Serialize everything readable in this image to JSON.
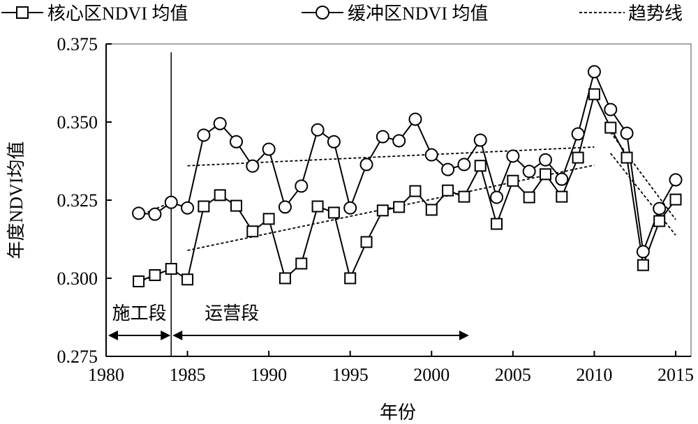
{
  "chart_data": {
    "type": "line",
    "title": "",
    "xlabel": "年份",
    "ylabel": "年度NDVI均值",
    "xlim": [
      1980,
      2016
    ],
    "ylim": [
      0.275,
      0.375
    ],
    "x_ticks": [
      "1980",
      "1985",
      "1990",
      "1995",
      "2000",
      "2005",
      "2010",
      "2015"
    ],
    "y_ticks": [
      "0.275",
      "0.300",
      "0.325",
      "0.350",
      "0.375"
    ],
    "grid": false,
    "legend_position": "top",
    "x": [
      1982,
      1983,
      1984,
      1985,
      1986,
      1987,
      1988,
      1989,
      1990,
      1991,
      1992,
      1993,
      1994,
      1995,
      1996,
      1997,
      1998,
      1999,
      2000,
      2001,
      2002,
      2003,
      2004,
      2005,
      2006,
      2007,
      2008,
      2009,
      2010,
      2011,
      2012,
      2013,
      2014,
      2015
    ],
    "series": [
      {
        "name": "核心区NDVI 均值",
        "marker": "square",
        "values": [
          0.299,
          0.301,
          0.303,
          0.2996,
          0.323,
          0.3266,
          0.3232,
          0.315,
          0.319,
          0.3,
          0.3047,
          0.323,
          0.321,
          0.3,
          0.3116,
          0.3217,
          0.3228,
          0.3279,
          0.3219,
          0.3281,
          0.3261,
          0.336,
          0.3174,
          0.3312,
          0.3259,
          0.3333,
          0.3261,
          0.3386,
          0.3589,
          0.3482,
          0.3386,
          0.3042,
          0.3183,
          0.3252
        ]
      },
      {
        "name": "缓冲区NDVI 均值",
        "marker": "circle",
        "values": [
          0.3208,
          0.3205,
          0.3243,
          0.3225,
          0.3458,
          0.3495,
          0.3437,
          0.3359,
          0.3413,
          0.3228,
          0.3295,
          0.3475,
          0.3437,
          0.3225,
          0.3364,
          0.3453,
          0.344,
          0.3509,
          0.3395,
          0.3348,
          0.3364,
          0.3442,
          0.3259,
          0.3391,
          0.3342,
          0.3379,
          0.3317,
          0.3462,
          0.3661,
          0.354,
          0.3464,
          0.3085,
          0.3223,
          0.3315
        ]
      }
    ],
    "trend_label": "趋势线",
    "trend_lines": [
      {
        "series": "核心区",
        "x": [
          1982,
          1984
        ],
        "y": [
          0.2988,
          0.3031
        ]
      },
      {
        "series": "缓冲区",
        "x": [
          1982,
          1984
        ],
        "y": [
          0.32,
          0.3243
        ]
      },
      {
        "series": "核心区",
        "x": [
          1985,
          2010
        ],
        "y": [
          0.3089,
          0.3362
        ]
      },
      {
        "series": "缓冲区",
        "x": [
          1985,
          2010
        ],
        "y": [
          0.336,
          0.342
        ]
      },
      {
        "series": "缓冲区",
        "x": [
          2011,
          2015
        ],
        "y": [
          0.3467,
          0.3188
        ]
      },
      {
        "series": "核心区",
        "x": [
          2011,
          2015
        ],
        "y": [
          0.34,
          0.3138
        ]
      }
    ],
    "annotations": {
      "divider_year": 1984,
      "construction": {
        "label": "施工段",
        "from": 1980,
        "to": 1984
      },
      "operation": {
        "label": "运营段",
        "from": 1984,
        "to": 2002.3
      }
    }
  }
}
